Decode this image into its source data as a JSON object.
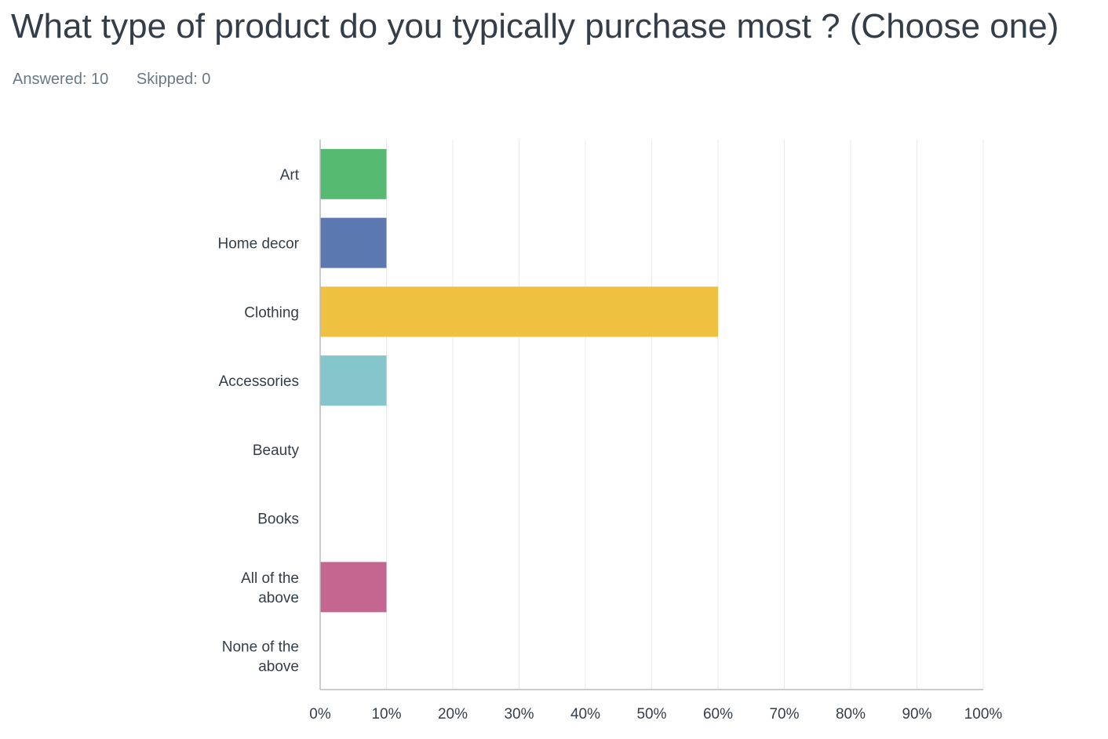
{
  "header": {
    "question": "What type of product do you typically purchase most ? (Choose one)",
    "answered": "Answered: 10",
    "skipped": "Skipped: 0"
  },
  "chart_data": {
    "type": "bar",
    "orientation": "horizontal",
    "title": "",
    "xlabel": "",
    "ylabel": "",
    "categories": [
      "Art",
      "Home decor",
      "Clothing",
      "Accessories",
      "Beauty",
      "Books",
      "All of the above",
      "None of the above"
    ],
    "category_lines": [
      [
        "Art"
      ],
      [
        "Home decor"
      ],
      [
        "Clothing"
      ],
      [
        "Accessories"
      ],
      [
        "Beauty"
      ],
      [
        "Books"
      ],
      [
        "All of the",
        "above"
      ],
      [
        "None of the",
        "above"
      ]
    ],
    "values": [
      10,
      10,
      60,
      10,
      0,
      0,
      10,
      0
    ],
    "colors": [
      "#56bb71",
      "#5b79b0",
      "#eec140",
      "#84c6cc",
      "#a5a5a5",
      "#a5a5a5",
      "#c4668f",
      "#a5a5a5"
    ],
    "xlim": [
      0,
      100
    ],
    "ticks": [
      "0%",
      "10%",
      "20%",
      "30%",
      "40%",
      "50%",
      "60%",
      "70%",
      "80%",
      "90%",
      "100%"
    ],
    "grid": true,
    "legend": "none"
  }
}
